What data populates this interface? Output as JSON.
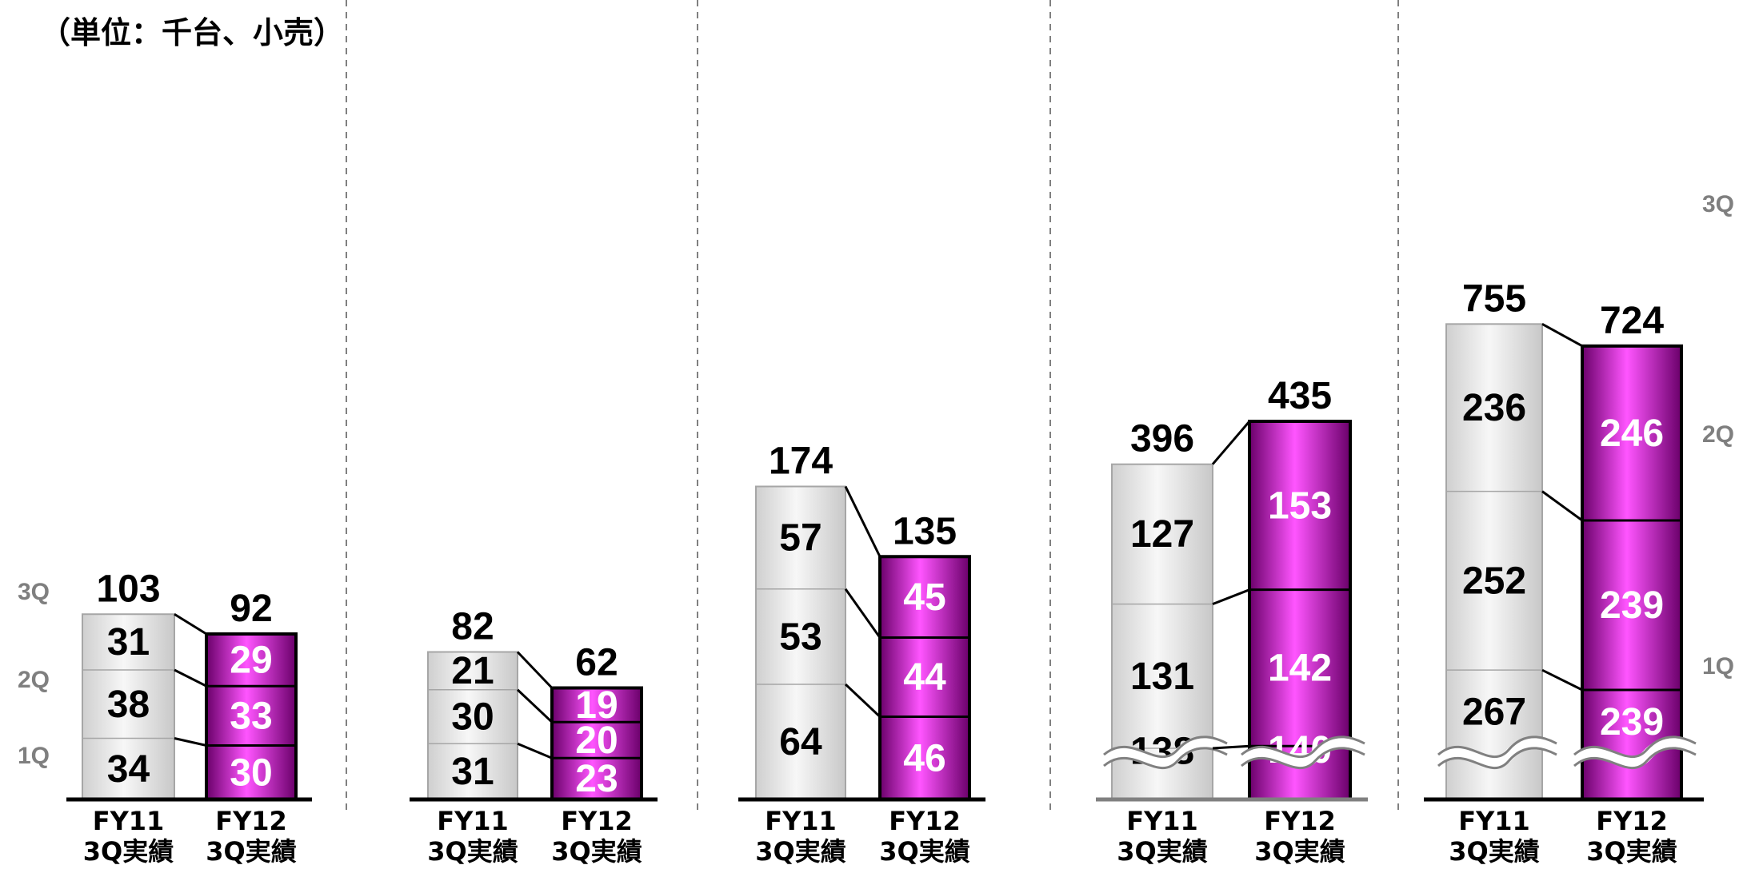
{
  "unit_label": "（単位：千台、小売）",
  "colors": {
    "fy11_fill": "#e0e0e0",
    "fy12_fill": "#ee44ee",
    "fy12_text": "#ffffff",
    "quarter_label": "#7f7f7f",
    "divider": "#808080"
  },
  "quarter_labels_left": [
    "3Q",
    "2Q",
    "1Q"
  ],
  "quarter_labels_right": [
    "3Q",
    "2Q",
    "1Q"
  ],
  "chart_data": [
    {
      "type": "bar",
      "stacked": true,
      "categories": [
        "FY11\n3Q実績",
        "FY12\n3Q実績"
      ],
      "series": [
        {
          "name": "1Q",
          "values": [
            34,
            30
          ]
        },
        {
          "name": "2Q",
          "values": [
            38,
            33
          ]
        },
        {
          "name": "3Q",
          "values": [
            31,
            29
          ]
        }
      ],
      "totals": [
        103,
        92
      ],
      "broken_axis": false
    },
    {
      "type": "bar",
      "stacked": true,
      "categories": [
        "FY11\n3Q実績",
        "FY12\n3Q実績"
      ],
      "series": [
        {
          "name": "1Q",
          "values": [
            31,
            23
          ]
        },
        {
          "name": "2Q",
          "values": [
            30,
            20
          ]
        },
        {
          "name": "3Q",
          "values": [
            21,
            19
          ]
        }
      ],
      "totals": [
        82,
        62
      ],
      "broken_axis": false
    },
    {
      "type": "bar",
      "stacked": true,
      "categories": [
        "FY11\n3Q実績",
        "FY12\n3Q実績"
      ],
      "series": [
        {
          "name": "1Q",
          "values": [
            64,
            46
          ]
        },
        {
          "name": "2Q",
          "values": [
            53,
            44
          ]
        },
        {
          "name": "3Q",
          "values": [
            57,
            45
          ]
        }
      ],
      "totals": [
        174,
        135
      ],
      "broken_axis": false
    },
    {
      "type": "bar",
      "stacked": true,
      "categories": [
        "FY11\n3Q実績",
        "FY12\n3Q実績"
      ],
      "series": [
        {
          "name": "1Q",
          "values": [
            138,
            140
          ]
        },
        {
          "name": "2Q",
          "values": [
            131,
            142
          ]
        },
        {
          "name": "3Q",
          "values": [
            127,
            153
          ]
        }
      ],
      "totals": [
        396,
        435
      ],
      "broken_axis": true
    },
    {
      "type": "bar",
      "stacked": true,
      "categories": [
        "FY11\n3Q実績",
        "FY12\n3Q実績"
      ],
      "series": [
        {
          "name": "1Q",
          "values": [
            267,
            239
          ]
        },
        {
          "name": "2Q",
          "values": [
            252,
            239
          ]
        },
        {
          "name": "3Q",
          "values": [
            236,
            246
          ]
        }
      ],
      "totals": [
        755,
        724
      ],
      "broken_axis": true
    }
  ]
}
